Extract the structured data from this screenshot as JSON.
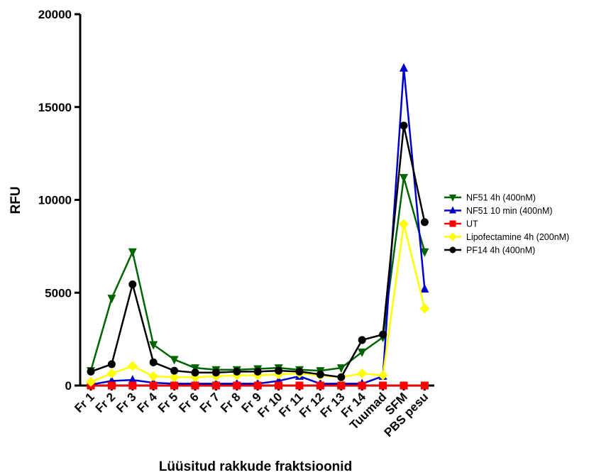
{
  "chart_data": {
    "type": "line",
    "title": "",
    "xlabel": "Lüüsitud rakkude fraktsioonid",
    "ylabel": "RFU",
    "ylim": [
      0,
      20000
    ],
    "yticks": [
      "0",
      "5000",
      "10000",
      "15000",
      "20000"
    ],
    "categories": [
      "Fr 1",
      "Fr 2",
      "Fr 3",
      "Fr 4",
      "Fr 5",
      "Fr 6",
      "Fr 7",
      "Fr 8",
      "Fr 9",
      "Fr 10",
      "Fr 11",
      "Fr 12",
      "Fr 13",
      "Fr 14",
      "Tuumad",
      "SFM",
      "PBS pesu"
    ],
    "legend_position": "right",
    "grid": false,
    "series": [
      {
        "name": "NF51 4h (400nM)",
        "color": "#006400",
        "marker": "triangle-down",
        "values": [
          800,
          4700,
          7200,
          2200,
          1400,
          950,
          850,
          850,
          900,
          950,
          850,
          800,
          950,
          1800,
          2600,
          11200,
          7200
        ]
      },
      {
        "name": "NF51 10 min (400nM)",
        "color": "#0000cc",
        "marker": "triangle-up",
        "values": [
          50,
          250,
          300,
          150,
          100,
          100,
          100,
          100,
          100,
          250,
          500,
          100,
          100,
          100,
          500,
          17100,
          5200
        ]
      },
      {
        "name": "UT",
        "color": "#ff0000",
        "marker": "square",
        "values": [
          0,
          0,
          0,
          0,
          0,
          0,
          0,
          0,
          0,
          0,
          0,
          0,
          0,
          0,
          0,
          0,
          0
        ]
      },
      {
        "name": "Lipofectamine 4h (200nM)",
        "color": "#ffff00",
        "marker": "diamond",
        "values": [
          200,
          650,
          1050,
          500,
          450,
          450,
          500,
          550,
          550,
          600,
          650,
          550,
          450,
          650,
          550,
          8700,
          4150
        ]
      },
      {
        "name": "PF14 4h (400nM)",
        "color": "#000000",
        "marker": "circle",
        "values": [
          750,
          1150,
          5450,
          1250,
          800,
          700,
          700,
          750,
          750,
          800,
          750,
          600,
          450,
          2450,
          2750,
          14000,
          8800
        ]
      }
    ]
  }
}
